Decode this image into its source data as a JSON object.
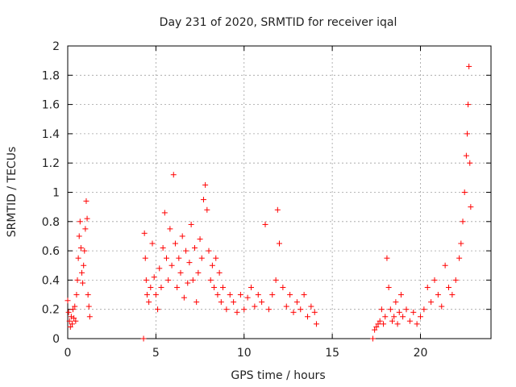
{
  "chart_data": {
    "type": "scatter",
    "title": "Day 231 of 2020, SRMTID for receiver iqal",
    "xlabel": "GPS time / hours",
    "ylabel": "SRMTID / TECUs",
    "xlim": [
      0,
      24
    ],
    "ylim": [
      0,
      2
    ],
    "x_ticks": [
      0,
      5,
      10,
      15,
      20
    ],
    "x_tick_labels": [
      "0",
      "5",
      "10",
      "15",
      "20"
    ],
    "y_ticks": [
      0,
      0.2,
      0.4,
      0.6,
      0.8,
      1,
      1.2,
      1.4,
      1.6,
      1.8,
      2
    ],
    "y_tick_labels": [
      "0",
      "0.2",
      "0.4",
      "0.6",
      "0.8",
      "1",
      "1.2",
      "1.4",
      "1.6",
      "1.8",
      "2"
    ],
    "grid": true,
    "marker": "+",
    "color": "#ff0000",
    "series": [
      {
        "name": "SRMTID",
        "points": [
          [
            0.0,
            0.26
          ],
          [
            0.05,
            0.18
          ],
          [
            0.1,
            0.12
          ],
          [
            0.15,
            0.08
          ],
          [
            0.2,
            0.15
          ],
          [
            0.25,
            0.1
          ],
          [
            0.3,
            0.2
          ],
          [
            0.35,
            0.14
          ],
          [
            0.4,
            0.22
          ],
          [
            0.45,
            0.12
          ],
          [
            0.5,
            0.3
          ],
          [
            0.55,
            0.4
          ],
          [
            0.6,
            0.55
          ],
          [
            0.65,
            0.7
          ],
          [
            0.7,
            0.8
          ],
          [
            0.75,
            0.62
          ],
          [
            0.8,
            0.45
          ],
          [
            0.85,
            0.38
          ],
          [
            0.9,
            0.5
          ],
          [
            0.95,
            0.6
          ],
          [
            1.0,
            0.75
          ],
          [
            1.05,
            0.94
          ],
          [
            1.1,
            0.82
          ],
          [
            1.15,
            0.3
          ],
          [
            1.2,
            0.22
          ],
          [
            1.25,
            0.15
          ],
          [
            4.3,
            0.0
          ],
          [
            4.35,
            0.72
          ],
          [
            4.4,
            0.55
          ],
          [
            4.45,
            0.4
          ],
          [
            4.5,
            0.3
          ],
          [
            4.6,
            0.25
          ],
          [
            4.7,
            0.35
          ],
          [
            4.8,
            0.65
          ],
          [
            4.9,
            0.42
          ],
          [
            5.0,
            0.3
          ],
          [
            5.1,
            0.2
          ],
          [
            5.2,
            0.48
          ],
          [
            5.3,
            0.35
          ],
          [
            5.4,
            0.62
          ],
          [
            5.5,
            0.86
          ],
          [
            5.6,
            0.55
          ],
          [
            5.7,
            0.4
          ],
          [
            5.8,
            0.75
          ],
          [
            5.9,
            0.5
          ],
          [
            6.0,
            1.12
          ],
          [
            6.1,
            0.65
          ],
          [
            6.2,
            0.35
          ],
          [
            6.3,
            0.55
          ],
          [
            6.4,
            0.45
          ],
          [
            6.5,
            0.7
          ],
          [
            6.6,
            0.28
          ],
          [
            6.7,
            0.6
          ],
          [
            6.8,
            0.38
          ],
          [
            6.9,
            0.52
          ],
          [
            7.0,
            0.78
          ],
          [
            7.1,
            0.4
          ],
          [
            7.2,
            0.62
          ],
          [
            7.3,
            0.25
          ],
          [
            7.4,
            0.45
          ],
          [
            7.5,
            0.68
          ],
          [
            7.6,
            0.55
          ],
          [
            7.7,
            0.95
          ],
          [
            7.8,
            1.05
          ],
          [
            7.9,
            0.88
          ],
          [
            8.0,
            0.6
          ],
          [
            8.1,
            0.4
          ],
          [
            8.2,
            0.5
          ],
          [
            8.3,
            0.35
          ],
          [
            8.4,
            0.55
          ],
          [
            8.5,
            0.3
          ],
          [
            8.6,
            0.45
          ],
          [
            8.7,
            0.25
          ],
          [
            8.8,
            0.35
          ],
          [
            9.0,
            0.2
          ],
          [
            9.2,
            0.3
          ],
          [
            9.4,
            0.25
          ],
          [
            9.6,
            0.18
          ],
          [
            9.8,
            0.3
          ],
          [
            10.0,
            0.2
          ],
          [
            10.2,
            0.28
          ],
          [
            10.4,
            0.35
          ],
          [
            10.6,
            0.22
          ],
          [
            10.8,
            0.3
          ],
          [
            11.0,
            0.25
          ],
          [
            11.2,
            0.78
          ],
          [
            11.4,
            0.2
          ],
          [
            11.6,
            0.3
          ],
          [
            11.8,
            0.4
          ],
          [
            11.9,
            0.88
          ],
          [
            12.0,
            0.65
          ],
          [
            12.2,
            0.35
          ],
          [
            12.4,
            0.22
          ],
          [
            12.6,
            0.3
          ],
          [
            12.8,
            0.18
          ],
          [
            13.0,
            0.25
          ],
          [
            13.2,
            0.2
          ],
          [
            13.4,
            0.3
          ],
          [
            13.6,
            0.15
          ],
          [
            13.8,
            0.22
          ],
          [
            14.0,
            0.18
          ],
          [
            14.1,
            0.1
          ],
          [
            17.3,
            0.0
          ],
          [
            17.4,
            0.06
          ],
          [
            17.5,
            0.08
          ],
          [
            17.6,
            0.1
          ],
          [
            17.7,
            0.12
          ],
          [
            17.8,
            0.2
          ],
          [
            17.9,
            0.1
          ],
          [
            18.0,
            0.15
          ],
          [
            18.1,
            0.55
          ],
          [
            18.2,
            0.35
          ],
          [
            18.3,
            0.2
          ],
          [
            18.4,
            0.12
          ],
          [
            18.5,
            0.15
          ],
          [
            18.6,
            0.25
          ],
          [
            18.7,
            0.1
          ],
          [
            18.8,
            0.18
          ],
          [
            18.9,
            0.3
          ],
          [
            19.0,
            0.15
          ],
          [
            19.2,
            0.2
          ],
          [
            19.4,
            0.12
          ],
          [
            19.6,
            0.18
          ],
          [
            19.8,
            0.1
          ],
          [
            20.0,
            0.15
          ],
          [
            20.2,
            0.2
          ],
          [
            20.4,
            0.35
          ],
          [
            20.6,
            0.25
          ],
          [
            20.8,
            0.4
          ],
          [
            21.0,
            0.3
          ],
          [
            21.2,
            0.22
          ],
          [
            21.4,
            0.5
          ],
          [
            21.6,
            0.35
          ],
          [
            21.8,
            0.3
          ],
          [
            22.0,
            0.4
          ],
          [
            22.2,
            0.55
          ],
          [
            22.3,
            0.65
          ],
          [
            22.4,
            0.8
          ],
          [
            22.5,
            1.0
          ],
          [
            22.6,
            1.25
          ],
          [
            22.65,
            1.4
          ],
          [
            22.7,
            1.6
          ],
          [
            22.75,
            1.86
          ],
          [
            22.8,
            1.2
          ],
          [
            22.85,
            0.9
          ]
        ]
      }
    ]
  }
}
